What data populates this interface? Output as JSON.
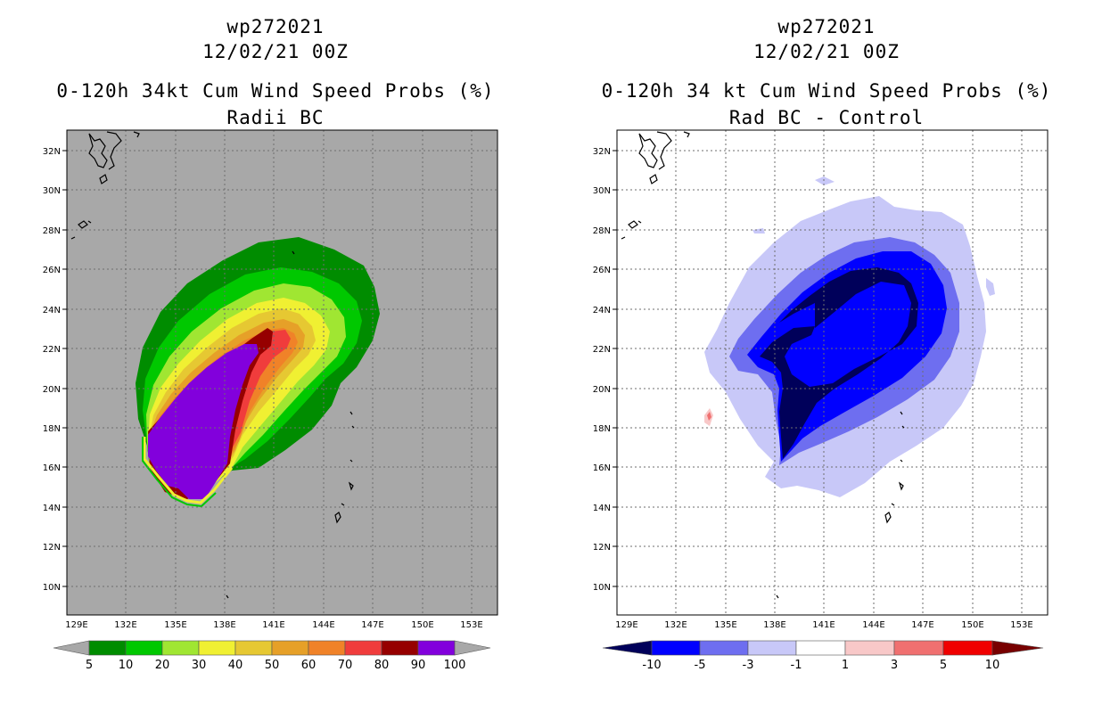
{
  "panels": {
    "left": {
      "title_line1": "wp272021",
      "title_line2": "12/02/21 00Z",
      "title_line3": "0-120h 34kt Cum Wind Speed Probs (%)",
      "title_line4": "Radii BC",
      "background_color": "#a8a8a8",
      "lat_labels": [
        "32N",
        "30N",
        "28N",
        "26N",
        "24N",
        "22N",
        "20N",
        "18N",
        "16N",
        "14N",
        "12N",
        "10N"
      ],
      "lon_labels": [
        "129E",
        "132E",
        "135E",
        "138E",
        "141E",
        "144E",
        "147E",
        "150E",
        "153E"
      ],
      "colorbar": {
        "labels": [
          "5",
          "10",
          "20",
          "30",
          "40",
          "50",
          "60",
          "70",
          "80",
          "90",
          "100"
        ],
        "colors": [
          "#008c00",
          "#00c800",
          "#a0e632",
          "#f0f032",
          "#e6c832",
          "#e6a028",
          "#f08228",
          "#f03c3c",
          "#960000",
          "#8200dc"
        ],
        "end_color": "#a8a8a8"
      }
    },
    "right": {
      "title_line1": "wp272021",
      "title_line2": "12/02/21 00Z",
      "title_line3": "0-120h 34 kt Cum Wind Speed Probs (%)",
      "title_line4": "Rad BC - Control",
      "background_color": "#ffffff",
      "lat_labels": [
        "32N",
        "30N",
        "28N",
        "26N",
        "24N",
        "22N",
        "20N",
        "18N",
        "16N",
        "14N",
        "12N",
        "10N"
      ],
      "lon_labels": [
        "129E",
        "132E",
        "135E",
        "138E",
        "141E",
        "144E",
        "147E",
        "150E",
        "153E"
      ],
      "colorbar": {
        "labels": [
          "-10",
          "-5",
          "-3",
          "-1",
          "1",
          "3",
          "5",
          "10"
        ],
        "colors": [
          "#0000ff",
          "#6e6ef0",
          "#c8c8f8",
          "#ffffff",
          "#f8c8c8",
          "#f07070",
          "#f00000"
        ],
        "low_end_color": "#00005a",
        "high_end_color": "#780000"
      }
    }
  }
}
